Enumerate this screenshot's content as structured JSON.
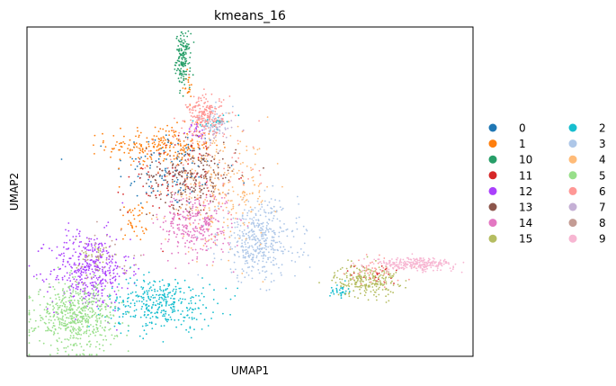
{
  "chart_data": {
    "type": "scatter",
    "title": "kmeans_16",
    "xlabel": "UMAP1",
    "ylabel": "UMAP2",
    "xticks": [],
    "yticks": [],
    "legend_placement": "right, outside plot, 2 columns",
    "xlim": [
      0,
      100
    ],
    "ylim": [
      0,
      100
    ],
    "series": [
      {
        "name": "0",
        "color": "#1f77b4",
        "clusters": [
          {
            "cx": 32,
            "cy": 57,
            "sx": 6,
            "sy": 6,
            "n": 120
          }
        ]
      },
      {
        "name": "1",
        "color": "#ff7f0e",
        "clusters": [
          {
            "cx": 30,
            "cy": 64,
            "sx": 6,
            "sy": 3,
            "n": 220
          },
          {
            "cx": 24,
            "cy": 41,
            "sx": 1.5,
            "sy": 3,
            "n": 40
          },
          {
            "cx": 36,
            "cy": 82,
            "sx": 0.6,
            "sy": 2,
            "n": 20
          }
        ]
      },
      {
        "name": "10",
        "color": "#279e68",
        "clusters": [
          {
            "cx": 35,
            "cy": 90,
            "sx": 0.8,
            "sy": 4,
            "n": 160
          }
        ]
      },
      {
        "name": "11",
        "color": "#d62728",
        "clusters": [
          {
            "cx": 33,
            "cy": 55,
            "sx": 5,
            "sy": 6,
            "n": 80
          },
          {
            "cx": 79,
            "cy": 25,
            "sx": 3,
            "sy": 1.5,
            "n": 25
          }
        ]
      },
      {
        "name": "12",
        "color": "#aa40fc",
        "clusters": [
          {
            "cx": 14,
            "cy": 26,
            "sx": 4.5,
            "sy": 6,
            "n": 420
          },
          {
            "cx": 38,
            "cy": 68,
            "sx": 1,
            "sy": 1.5,
            "n": 20
          }
        ]
      },
      {
        "name": "13",
        "color": "#8c564b",
        "clusters": [
          {
            "cx": 37,
            "cy": 55,
            "sx": 5,
            "sy": 5,
            "n": 240
          }
        ]
      },
      {
        "name": "14",
        "color": "#e377c2",
        "clusters": [
          {
            "cx": 38,
            "cy": 40,
            "sx": 4,
            "sy": 5,
            "n": 300
          }
        ]
      },
      {
        "name": "15",
        "color": "#b5bd61",
        "clusters": [
          {
            "cx": 76,
            "cy": 23,
            "sx": 3.5,
            "sy": 2.5,
            "n": 240
          },
          {
            "cx": 15,
            "cy": 30,
            "sx": 2,
            "sy": 3,
            "n": 30
          }
        ]
      },
      {
        "name": "2",
        "color": "#17becf",
        "clusters": [
          {
            "cx": 30,
            "cy": 16,
            "sx": 6,
            "sy": 4,
            "n": 360
          },
          {
            "cx": 70,
            "cy": 20,
            "sx": 1,
            "sy": 1,
            "n": 30
          },
          {
            "cx": 42,
            "cy": 71,
            "sx": 1.5,
            "sy": 1,
            "n": 30
          }
        ]
      },
      {
        "name": "3",
        "color": "#aec7e8",
        "clusters": [
          {
            "cx": 52,
            "cy": 35,
            "sx": 4.5,
            "sy": 6,
            "n": 420
          },
          {
            "cx": 42,
            "cy": 72,
            "sx": 2,
            "sy": 2,
            "n": 30
          }
        ]
      },
      {
        "name": "4",
        "color": "#ffbb78",
        "clusters": [
          {
            "cx": 43,
            "cy": 50,
            "sx": 6,
            "sy": 8,
            "n": 260
          }
        ]
      },
      {
        "name": "5",
        "color": "#98df8a",
        "clusters": [
          {
            "cx": 11,
            "cy": 12,
            "sx": 4.5,
            "sy": 5,
            "n": 560
          }
        ]
      },
      {
        "name": "6",
        "color": "#ff9896",
        "clusters": [
          {
            "cx": 40,
            "cy": 73,
            "sx": 2,
            "sy": 3,
            "n": 200
          },
          {
            "cx": 40,
            "cy": 58,
            "sx": 6,
            "sy": 10,
            "n": 80
          },
          {
            "cx": 78,
            "cy": 26,
            "sx": 3,
            "sy": 2,
            "n": 40
          }
        ]
      },
      {
        "name": "7",
        "color": "#c5b0d5",
        "clusters": [
          {
            "cx": 42,
            "cy": 68,
            "sx": 2,
            "sy": 2,
            "n": 40
          }
        ]
      },
      {
        "name": "8",
        "color": "#c49c94",
        "clusters": [
          {
            "cx": 18,
            "cy": 30,
            "sx": 4,
            "sy": 4,
            "n": 40
          }
        ]
      },
      {
        "name": "9",
        "color": "#f7b6d2",
        "clusters": [
          {
            "cx": 87,
            "cy": 28,
            "sx": 4.5,
            "sy": 1,
            "n": 260
          }
        ]
      }
    ]
  }
}
